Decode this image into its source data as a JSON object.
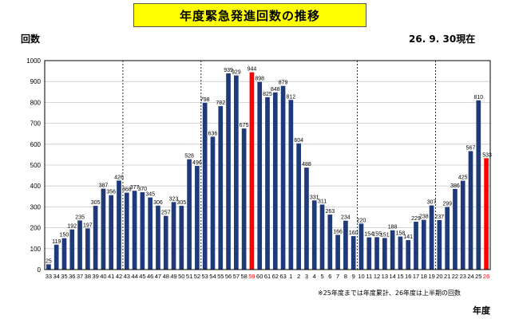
{
  "title": "年度緊急発進回数の推移",
  "as_of": "26. 9. 30現在",
  "note": "※25年度までは年度累計、26年度は上半期の回数",
  "colors": {
    "bar": "#1f3a7a",
    "highlight": "#ff0000",
    "title_bg": "#ffff00"
  },
  "chart_data": {
    "type": "bar",
    "title": "年度緊急発進回数の推移",
    "ylabel": "回数",
    "xlabel": "年度",
    "ylim": [
      0,
      1000
    ],
    "yticks": [
      0,
      100,
      200,
      300,
      400,
      500,
      600,
      700,
      800,
      900,
      1000
    ],
    "grid": true,
    "categories": [
      "33",
      "34",
      "35",
      "36",
      "37",
      "38",
      "39",
      "40",
      "41",
      "42",
      "43",
      "44",
      "45",
      "46",
      "47",
      "48",
      "49",
      "50",
      "51",
      "52",
      "53",
      "54",
      "55",
      "56",
      "57",
      "58",
      "59",
      "60",
      "61",
      "62",
      "63",
      "1",
      "2",
      "3",
      "4",
      "5",
      "6",
      "7",
      "8",
      "9",
      "10",
      "11",
      "12",
      "13",
      "14",
      "15",
      "16",
      "17",
      "18",
      "19",
      "20",
      "21",
      "22",
      "23",
      "24",
      "25",
      "26"
    ],
    "values": [
      25,
      119,
      150,
      192,
      235,
      197,
      305,
      387,
      356,
      426,
      368,
      377,
      370,
      345,
      306,
      257,
      323,
      305,
      528,
      496,
      798,
      636,
      782,
      939,
      929,
      675,
      944,
      898,
      825,
      848,
      879,
      812,
      604,
      488,
      331,
      311,
      263,
      166,
      234,
      160,
      220,
      154,
      155,
      151,
      188,
      158,
      141,
      229,
      238,
      307,
      237,
      299,
      386,
      425,
      567,
      810,
      533
    ],
    "highlight_categories": [
      "59",
      "26"
    ],
    "era_dividers_after": [
      "42",
      "52",
      "9",
      "19"
    ]
  }
}
